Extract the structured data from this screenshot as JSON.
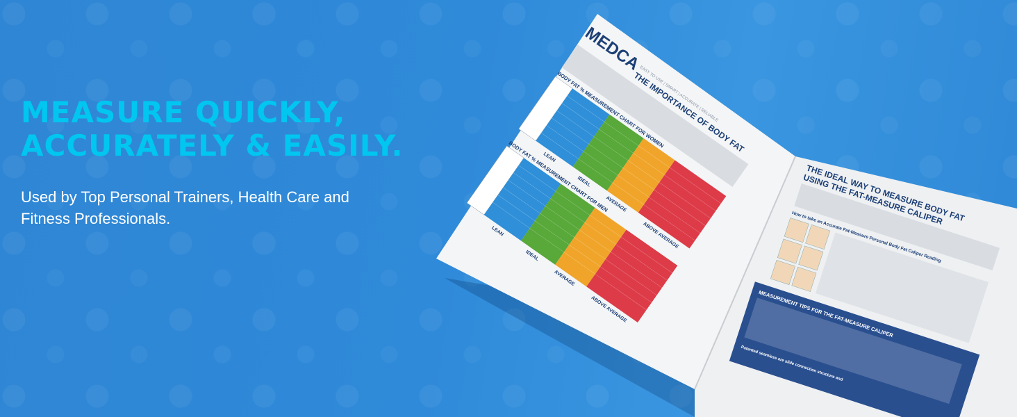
{
  "hero": {
    "headline_line1": "MEASURE QUICKLY,",
    "headline_line2": "ACCURATELY & EASILY.",
    "subline": "Used by Top Personal Trainers, Health Care and Fitness Professionals."
  },
  "brochure": {
    "logo": "MEDCA",
    "tagline": "EASY TO USE | SMART | ACCURATE | RELIABLE",
    "left_title": "THE IMPORTANCE OF BODY FAT",
    "women_chart_title": "BODY FAT % MEASUREMENT CHART FOR WOMEN",
    "men_chart_title": "BODY FAT % MEASUREMENT CHART FOR MEN",
    "band_lean": "LEAN",
    "band_ideal": "IDEAL",
    "band_average": "AVERAGE",
    "band_above": "ABOVE AVERAGE",
    "right_title_line1": "THE IDEAL WAY TO MEASURE BODY FAT",
    "right_title_line2": "USING THE FAT-MEASURE CALIPER",
    "how_to": "How to take an Accurate Fat-Measure Personal Body Fat Caliper Reading",
    "tips_title": "MEASUREMENT TIPS FOR THE FAT-MEASURE CALIPER",
    "footer_note": "Patented seamless are slide connection structure and",
    "colors": {
      "lean": "#2f8fd8",
      "ideal": "#58a83a",
      "average": "#f0a52a",
      "above": "#dd3b48",
      "headline": "#00c6f0"
    }
  }
}
